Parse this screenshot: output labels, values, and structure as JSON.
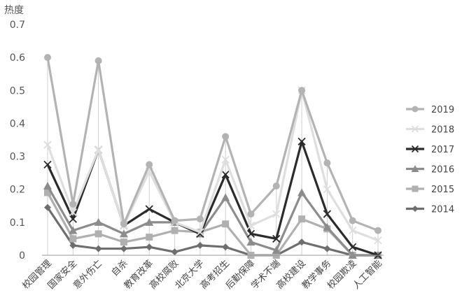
{
  "chart_data": {
    "type": "line",
    "title": "",
    "xlabel": "",
    "ylabel": "热度",
    "ylim": [
      0,
      0.7
    ],
    "yticks": [
      "0",
      "0.1",
      "0.2",
      "0.3",
      "0.4",
      "0.5",
      "0.6",
      "0.7"
    ],
    "grid": false,
    "legend_position": "right",
    "categories": [
      "校园管理",
      "国家安全",
      "意外伤亡",
      "自杀",
      "教育改革",
      "高校腐败",
      "北京大学",
      "高考招生",
      "后勤保障",
      "学术不端",
      "高校建设",
      "教学事务",
      "校园欺凌",
      "人工智能"
    ],
    "series": [
      {
        "name": "2019",
        "color": "#b3b3b3",
        "marker": "circle",
        "values": [
          0.6,
          0.155,
          0.59,
          0.095,
          0.275,
          0.105,
          0.11,
          0.36,
          0.125,
          0.21,
          0.5,
          0.28,
          0.105,
          0.075
        ]
      },
      {
        "name": "2018",
        "color": "#dedede",
        "marker": "x",
        "values": [
          0.335,
          0.13,
          0.32,
          0.09,
          0.255,
          0.1,
          0.07,
          0.29,
          0.09,
          0.125,
          0.5,
          0.2,
          0.075,
          0.045
        ]
      },
      {
        "name": "2017",
        "color": "#2b2b2b",
        "marker": "x",
        "values": [
          0.275,
          0.11,
          0.32,
          0.09,
          0.14,
          0.1,
          0.065,
          0.245,
          0.065,
          0.05,
          0.345,
          0.125,
          0.025,
          0.0
        ]
      },
      {
        "name": "2016",
        "color": "#8c8c8c",
        "marker": "triangle",
        "values": [
          0.21,
          0.075,
          0.1,
          0.065,
          0.1,
          0.1,
          0.065,
          0.175,
          0.04,
          0.015,
          0.19,
          0.085,
          0.0,
          0.0
        ]
      },
      {
        "name": "2015",
        "color": "#b0b0b0",
        "marker": "square",
        "values": [
          0.19,
          0.05,
          0.065,
          0.04,
          0.055,
          0.075,
          0.07,
          0.095,
          0.0,
          0.0,
          0.11,
          0.08,
          0.0,
          0.0
        ]
      },
      {
        "name": "2014",
        "color": "#6e6e6e",
        "marker": "diamond",
        "values": [
          0.145,
          0.03,
          0.02,
          0.02,
          0.025,
          0.01,
          0.03,
          0.025,
          0.0,
          0.0,
          0.04,
          0.02,
          0.0,
          0.0
        ]
      }
    ]
  }
}
